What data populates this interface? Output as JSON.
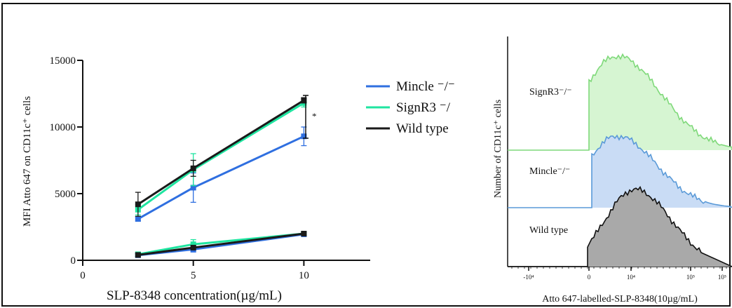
{
  "chart_data": [
    {
      "type": "line",
      "ylabel": "MFI Atto 647 on CD11c⁺ cells",
      "xlabel": "SLP-8348 concentration(µg/mL)",
      "xlim": [
        0,
        13
      ],
      "ylim": [
        0,
        15000
      ],
      "x_ticks": [
        "0",
        "5",
        "10"
      ],
      "y_ticks": [
        "0",
        "5000",
        "10000",
        "15000"
      ],
      "grid": false,
      "legend_position": "top-right",
      "significance_label": "*",
      "series": [
        {
          "name": "Mincle ⁻/⁻",
          "color": "#2f6fe0",
          "group": "upper",
          "x": [
            2.5,
            5,
            10
          ],
          "y": [
            3100,
            5450,
            9300
          ],
          "err": [
            150,
            1100,
            700
          ]
        },
        {
          "name": "SignR3 ⁻/",
          "color": "#1fe5a0",
          "group": "upper",
          "x": [
            2.5,
            5,
            10
          ],
          "y": [
            3800,
            6800,
            11800
          ],
          "err": [
            400,
            1200,
            300
          ]
        },
        {
          "name": "Wild type",
          "color": "#1a1a1a",
          "group": "upper",
          "x": [
            2.5,
            5,
            10
          ],
          "y": [
            4200,
            6900,
            12000
          ],
          "err": [
            900,
            600,
            200
          ]
        },
        {
          "name": "Mincle ⁻/⁻",
          "color": "#2f6fe0",
          "group": "lower",
          "x": [
            2.5,
            5,
            10
          ],
          "y": [
            380,
            820,
            1950
          ],
          "err": [
            120,
            200,
            100
          ]
        },
        {
          "name": "SignR3 ⁻/",
          "color": "#1fe5a0",
          "group": "lower",
          "x": [
            2.5,
            5,
            10
          ],
          "y": [
            450,
            1200,
            2000
          ],
          "err": [
            150,
            350,
            100
          ]
        },
        {
          "name": "Wild type",
          "color": "#1a1a1a",
          "group": "lower",
          "x": [
            2.5,
            5,
            10
          ],
          "y": [
            400,
            950,
            2000
          ],
          "err": [
            100,
            150,
            100
          ]
        }
      ],
      "legend": [
        {
          "label": "Mincle ⁻/⁻",
          "color": "#2f6fe0"
        },
        {
          "label": "SignR3 ⁻/",
          "color": "#1fe5a0"
        },
        {
          "label": "Wild type",
          "color": "#1a1a1a"
        }
      ]
    },
    {
      "type": "area",
      "ylabel": "Number of CD11c⁺ cells",
      "xlabel": "Atto 647-labelled-SLP-8348(10µg/mL)",
      "x_ticks": [
        "-10⁴",
        "0",
        "10⁴",
        "10⁵",
        "10⁵"
      ],
      "series": [
        {
          "name": "SignR3⁻/⁻",
          "label": "SignR3⁻/⁻",
          "fill": "#d6f5d2",
          "stroke": "#7fd97a"
        },
        {
          "name": "Mincle⁻/⁻",
          "label": "Mincle⁻/⁻",
          "fill": "#c9dcf5",
          "stroke": "#5a9ad8"
        },
        {
          "name": "Wild type",
          "label": "Wild type",
          "fill": "#a9a9a9",
          "stroke": "#111111"
        }
      ]
    }
  ]
}
